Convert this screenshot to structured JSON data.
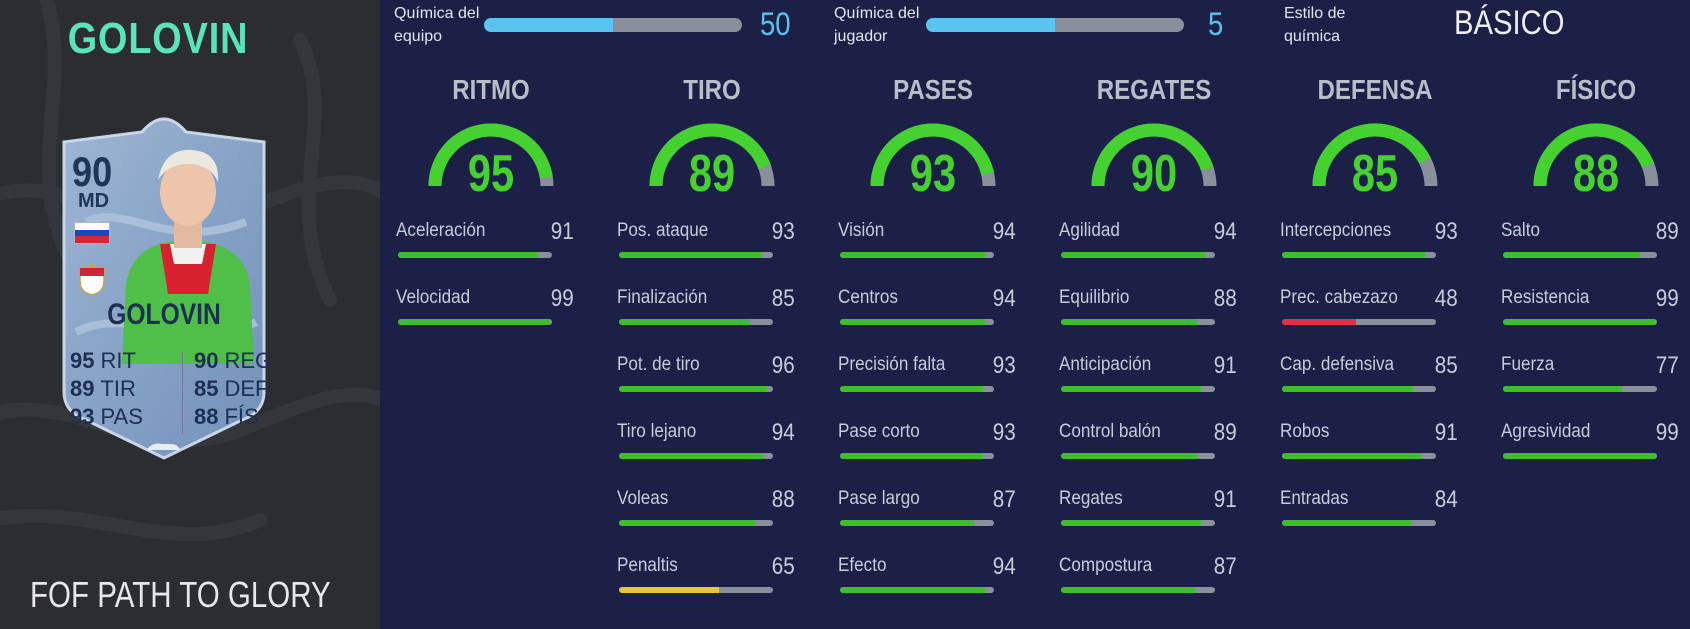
{
  "player": {
    "name": "GOLOVIN",
    "promo": "FOF PATH TO GLORY",
    "card": {
      "rating": "90",
      "position": "MD",
      "name": "GOLOVIN",
      "nation_flag": "russia-flag-icon",
      "club_badge": "monaco-badge-icon",
      "face_stats": [
        {
          "value": "95",
          "label": "RIT"
        },
        {
          "value": "89",
          "label": "TIR"
        },
        {
          "value": "93",
          "label": "PAS"
        },
        {
          "value": "90",
          "label": "REG"
        },
        {
          "value": "85",
          "label": "DEF"
        },
        {
          "value": "88",
          "label": "FÍS"
        }
      ]
    }
  },
  "chemistry": {
    "team": {
      "label_line1": "Química del",
      "label_line2": "equipo",
      "value": "50",
      "fraction": 0.5
    },
    "player": {
      "label_line1": "Química del",
      "label_line2": "jugador",
      "value": "5",
      "fraction": 0.5
    },
    "style": {
      "label_line1": "Estilo de",
      "label_line2": "química",
      "value": "BÁSICO"
    }
  },
  "colors": {
    "gauge_green": "#45d230",
    "bar_green": "#3fbe2c",
    "bar_yellow": "#e8c43a",
    "bar_red": "#e0324a",
    "bar_track": "#8a8f9c",
    "chem_blue": "#58c4ef",
    "name_teal": "#59e5b8"
  },
  "categories": [
    {
      "title": "RITMO",
      "value": "95",
      "stats": [
        {
          "label": "Aceleración",
          "value": "91"
        },
        {
          "label": "Velocidad",
          "value": "99"
        }
      ]
    },
    {
      "title": "TIRO",
      "value": "89",
      "stats": [
        {
          "label": "Pos. ataque",
          "value": "93"
        },
        {
          "label": "Finalización",
          "value": "85"
        },
        {
          "label": "Pot. de tiro",
          "value": "96"
        },
        {
          "label": "Tiro lejano",
          "value": "94"
        },
        {
          "label": "Voleas",
          "value": "88"
        },
        {
          "label": "Penaltis",
          "value": "65"
        }
      ]
    },
    {
      "title": "PASES",
      "value": "93",
      "stats": [
        {
          "label": "Visión",
          "value": "94"
        },
        {
          "label": "Centros",
          "value": "94"
        },
        {
          "label": "Precisión falta",
          "value": "93"
        },
        {
          "label": "Pase corto",
          "value": "93"
        },
        {
          "label": "Pase largo",
          "value": "87"
        },
        {
          "label": "Efecto",
          "value": "94"
        }
      ]
    },
    {
      "title": "REGATES",
      "value": "90",
      "stats": [
        {
          "label": "Agilidad",
          "value": "94"
        },
        {
          "label": "Equilibrio",
          "value": "88"
        },
        {
          "label": "Anticipación",
          "value": "91"
        },
        {
          "label": "Control balón",
          "value": "89"
        },
        {
          "label": "Regates",
          "value": "91"
        },
        {
          "label": "Compostura",
          "value": "87"
        }
      ]
    },
    {
      "title": "DEFENSA",
      "value": "85",
      "stats": [
        {
          "label": "Intercepciones",
          "value": "93"
        },
        {
          "label": "Prec. cabezazo",
          "value": "48"
        },
        {
          "label": "Cap. defensiva",
          "value": "85"
        },
        {
          "label": "Robos",
          "value": "91"
        },
        {
          "label": "Entradas",
          "value": "84"
        }
      ]
    },
    {
      "title": "FÍSICO",
      "value": "88",
      "stats": [
        {
          "label": "Salto",
          "value": "89"
        },
        {
          "label": "Resistencia",
          "value": "99"
        },
        {
          "label": "Fuerza",
          "value": "77"
        },
        {
          "label": "Agresividad",
          "value": "99"
        }
      ]
    }
  ]
}
